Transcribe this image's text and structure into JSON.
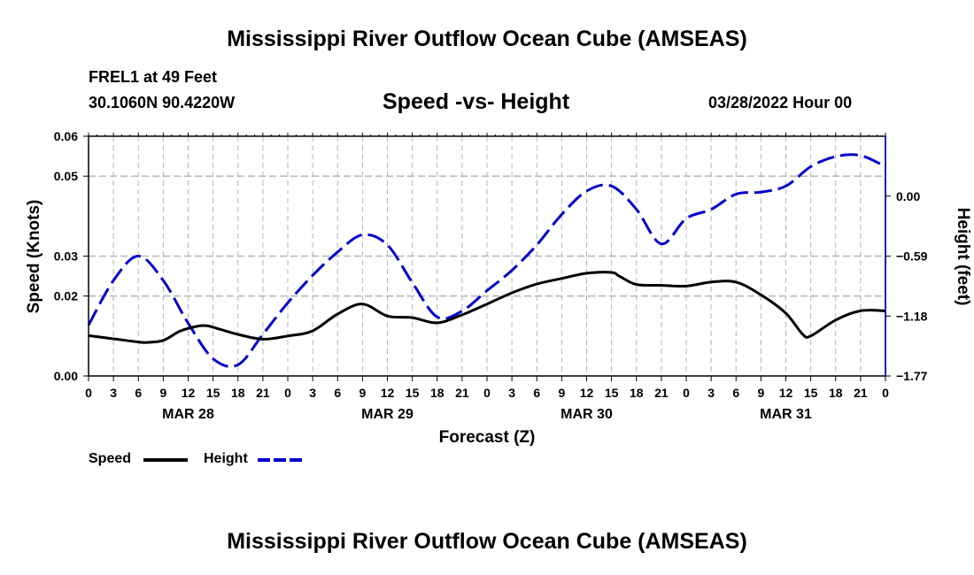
{
  "header": {
    "title": "Mississippi River Outflow Ocean Cube (AMSEAS)",
    "station": "FREL1 at 49 Feet",
    "coordinates": "30.1060N  90.4220W",
    "run_date": "03/28/2022 Hour 00",
    "bottom_title": "Mississippi River Outflow Ocean Cube (AMSEAS)"
  },
  "chart_data": {
    "type": "line",
    "title": "Speed -vs- Height",
    "xlabel": "Forecast (Z)",
    "ylabel": "Speed (Knots)",
    "y2label": "Height (feet)",
    "x_range": [
      0,
      96
    ],
    "ylim": [
      0,
      0.06
    ],
    "y2lim": [
      -1.77,
      0.59
    ],
    "x_tick_values": [
      0,
      3,
      6,
      9,
      12,
      15,
      18,
      21,
      24,
      27,
      30,
      33,
      36,
      39,
      42,
      45,
      48,
      51,
      54,
      57,
      60,
      63,
      66,
      69,
      72,
      75,
      78,
      81,
      84,
      87,
      90,
      93,
      96
    ],
    "x_tick_labels": [
      "0",
      "3",
      "6",
      "9",
      "12",
      "15",
      "18",
      "21",
      "0",
      "3",
      "6",
      "9",
      "12",
      "15",
      "18",
      "21",
      "0",
      "3",
      "6",
      "9",
      "12",
      "15",
      "18",
      "21",
      "0",
      "3",
      "6",
      "9",
      "12",
      "15",
      "18",
      "21",
      "0"
    ],
    "day_labels": [
      {
        "x": 12,
        "label": "MAR 28"
      },
      {
        "x": 36,
        "label": "MAR 29"
      },
      {
        "x": 60,
        "label": "MAR 30"
      },
      {
        "x": 84,
        "label": "MAR 31"
      }
    ],
    "y_ticks": [
      {
        "value": 0.0,
        "label": "0.00"
      },
      {
        "value": 0.02,
        "label": "0.02"
      },
      {
        "value": 0.03,
        "label": "0.03"
      },
      {
        "value": 0.05,
        "label": "0.05"
      },
      {
        "value": 0.06,
        "label": "0.06"
      }
    ],
    "y2_ticks": [
      {
        "value": -1.77,
        "label": "−1.77"
      },
      {
        "value": -1.18,
        "label": "−1.18"
      },
      {
        "value": -0.59,
        "label": "−0.59"
      },
      {
        "value": 0.0,
        "label": "0.00"
      }
    ],
    "grid": true,
    "series": [
      {
        "name": "Speed",
        "axis": "left",
        "color": "#000000",
        "dash": "solid",
        "x": [
          0,
          3,
          6,
          7,
          9,
          11,
          13,
          14,
          15,
          18,
          21,
          24,
          27,
          30,
          33,
          36,
          39,
          42,
          45,
          48,
          51,
          54,
          57,
          60,
          63,
          64,
          66,
          69,
          72,
          75,
          78,
          81,
          84,
          86,
          87,
          90,
          93,
          96
        ],
        "values": [
          0.0101,
          0.0093,
          0.0085,
          0.0084,
          0.0089,
          0.0112,
          0.0124,
          0.0126,
          0.0122,
          0.0104,
          0.0092,
          0.01,
          0.0113,
          0.0155,
          0.018,
          0.015,
          0.0146,
          0.0133,
          0.0153,
          0.018,
          0.0208,
          0.023,
          0.0244,
          0.0257,
          0.0259,
          0.0249,
          0.0229,
          0.0227,
          0.0225,
          0.0235,
          0.0235,
          0.0203,
          0.0157,
          0.0105,
          0.01,
          0.014,
          0.0163,
          0.0163
        ]
      },
      {
        "name": "Height",
        "axis": "right",
        "color": "#0000cc",
        "dash": "dashed",
        "x": [
          0,
          3,
          6,
          9,
          12,
          15,
          18,
          21,
          24,
          27,
          30,
          33,
          36,
          39,
          42,
          45,
          48,
          51,
          54,
          57,
          60,
          63,
          66,
          69,
          72,
          75,
          78,
          81,
          84,
          87,
          90,
          93,
          96
        ],
        "values": [
          -1.27,
          -0.83,
          -0.59,
          -0.83,
          -1.25,
          -1.6,
          -1.66,
          -1.36,
          -1.05,
          -0.78,
          -0.55,
          -0.38,
          -0.48,
          -0.85,
          -1.19,
          -1.13,
          -0.93,
          -0.73,
          -0.48,
          -0.18,
          0.05,
          0.1,
          -0.13,
          -0.47,
          -0.22,
          -0.13,
          0.02,
          0.04,
          0.1,
          0.29,
          0.39,
          0.4,
          0.29
        ]
      }
    ]
  },
  "legend": {
    "speed_label": "Speed",
    "height_label": "Height"
  }
}
